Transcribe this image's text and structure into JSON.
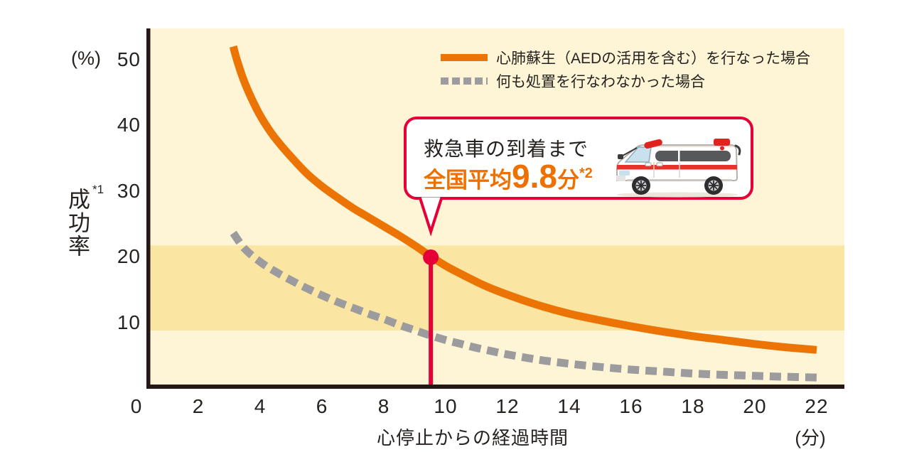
{
  "legend": {
    "items": [
      {
        "label": "心肺蘇生（AEDの活用を含む）を行なった場合",
        "color": "#EC7404",
        "style": "solid"
      },
      {
        "label": "何も処置を行なわなかった場合",
        "color": "#9C9C9E",
        "style": "dashed"
      }
    ]
  },
  "callout": {
    "line1": "救急車の到着まで",
    "line2_prefix": "全国平均",
    "line2_value": "9.8",
    "line2_suffix": "分",
    "line2_note": "*2",
    "border_color": "#E50038",
    "value_color": "#ED7000"
  },
  "chart_data": {
    "type": "line",
    "title": "",
    "xlabel": "心停止からの経過時間",
    "xunit": "(分)",
    "ylabel": "成功率",
    "ylabel_note": "*1",
    "yunit": "(%)",
    "xlim": [
      0,
      22.9
    ],
    "ylim": [
      0,
      54.5
    ],
    "x_ticks": [
      0,
      2,
      4,
      6,
      8,
      10,
      12,
      14,
      16,
      18,
      20,
      22
    ],
    "y_ticks": [
      10,
      20,
      30,
      40,
      50
    ],
    "grid": false,
    "plot_bg": "#FDF5D5",
    "band": {
      "from": 8.55,
      "to": 21.5,
      "color": "#FAE5A2"
    },
    "axis_color": "#231815",
    "series": [
      {
        "name": "心肺蘇生（AEDの活用を含む）を行なった場合",
        "color": "#EC7404",
        "style": "solid",
        "x": [
          3.13,
          3.24,
          3.45,
          3.7,
          4.0,
          4.35,
          4.7,
          5.0,
          5.5,
          6.0,
          6.5,
          7.0,
          7.5,
          8.0,
          8.5,
          9.0,
          9.5,
          10.0,
          10.6,
          11.3,
          12.0,
          13.0,
          14.0,
          15.0,
          16.0,
          17.0,
          18.0,
          19.0,
          20.0,
          21.0,
          22.0
        ],
        "y": [
          51.8,
          49.9,
          46.9,
          44.1,
          41.3,
          38.7,
          36.6,
          35.0,
          32.5,
          30.5,
          28.8,
          27.2,
          25.8,
          24.4,
          23.0,
          21.5,
          19.9,
          18.4,
          16.9,
          15.3,
          14.0,
          12.4,
          11.1,
          10.1,
          9.2,
          8.4,
          7.7,
          7.1,
          6.5,
          6.0,
          5.6
        ]
      },
      {
        "name": "何も処置を行なわなかった場合",
        "color": "#9C9C9E",
        "style": "dashed",
        "x": [
          3.13,
          3.5,
          4,
          4.5,
          5,
          5.5,
          6,
          6.5,
          7,
          7.5,
          8,
          8.5,
          9,
          9.5,
          10,
          10.5,
          11,
          11.5,
          12,
          13,
          14,
          15,
          16,
          17,
          18,
          19,
          20,
          21,
          22
        ],
        "y": [
          23.4,
          21.0,
          19.0,
          17.5,
          16.2,
          15.0,
          13.9,
          12.9,
          12.0,
          11.1,
          10.3,
          9.4,
          8.6,
          7.8,
          7.1,
          6.5,
          5.9,
          5.4,
          4.9,
          4.1,
          3.5,
          3.0,
          2.6,
          2.3,
          2.0,
          1.8,
          1.65,
          1.5,
          1.4
        ]
      }
    ],
    "marker": {
      "x": 9.52,
      "y": 19.7,
      "color": "#E50038",
      "label": "救急車の到着まで 全国平均9.8分*2"
    }
  }
}
